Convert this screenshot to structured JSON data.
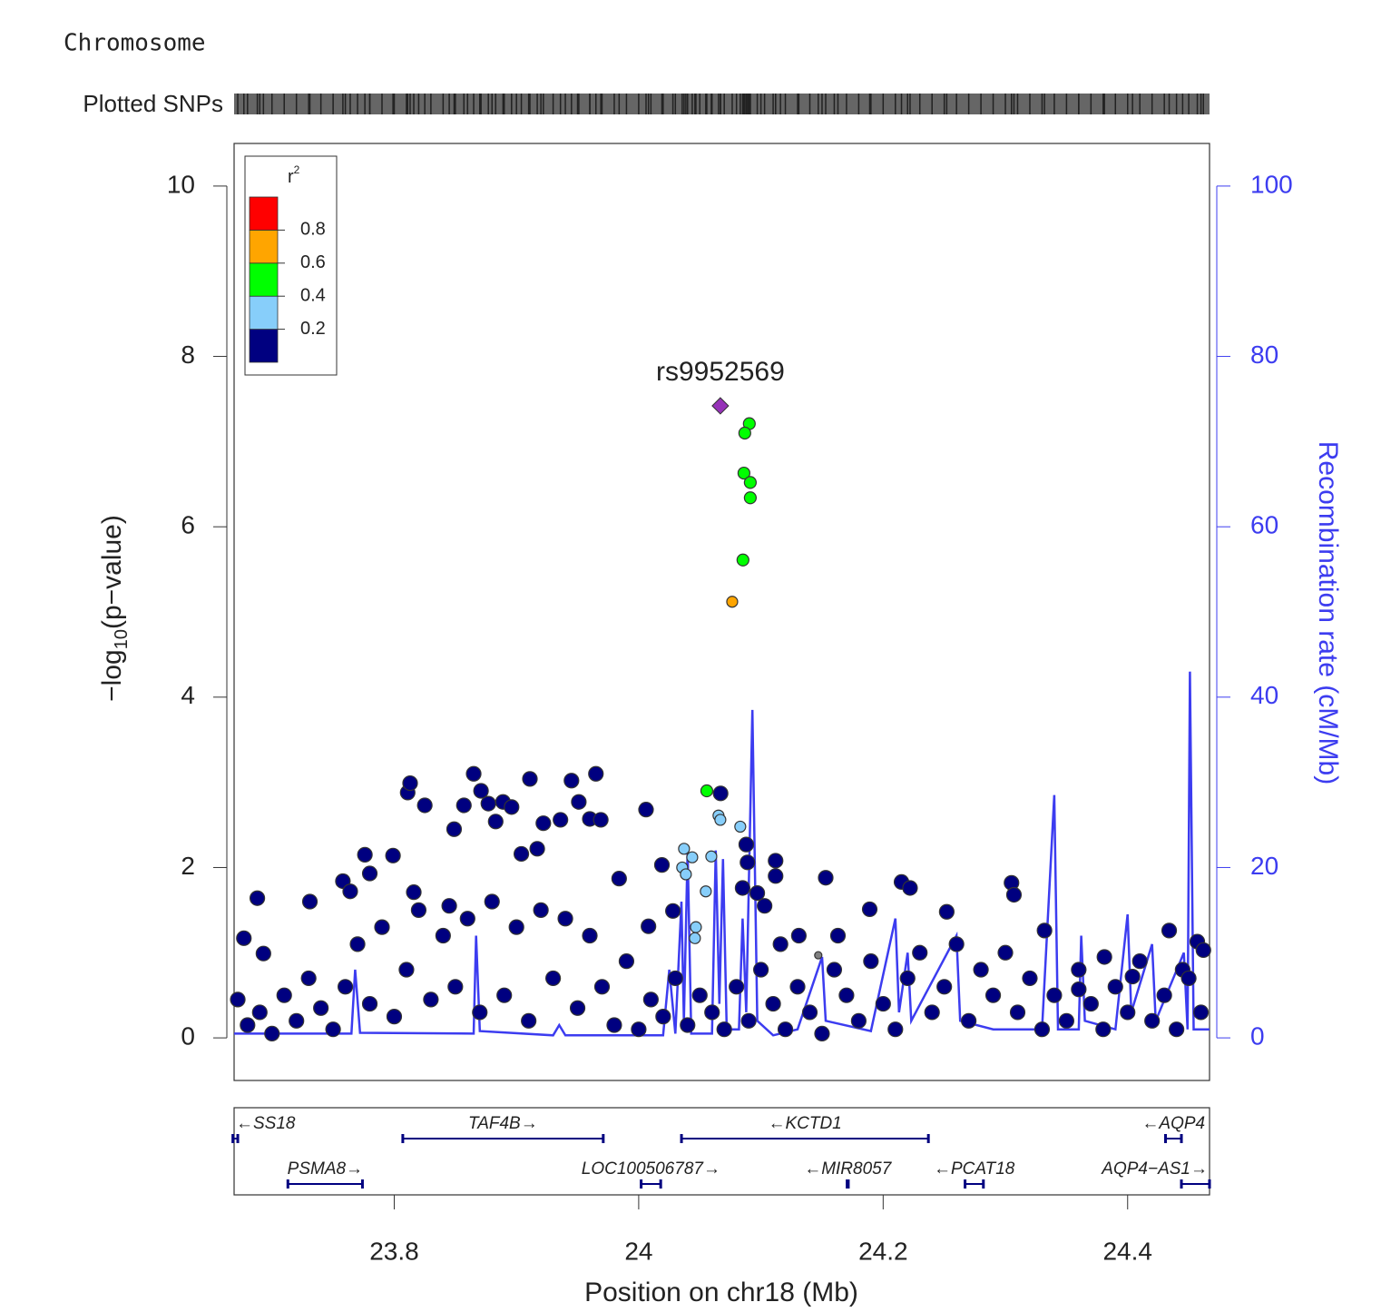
{
  "chart_data": {
    "type": "locuszoom",
    "chromosome_label": "Chromosome",
    "rug_label": "Plotted SNPs",
    "xlabel": "Position on chr18 (Mb)",
    "ylabel": [
      "−log",
      "10",
      "(p−value)"
    ],
    "y2label": "Recombination rate (cM/Mb)",
    "xlim": [
      23.669,
      24.467
    ],
    "xticks": [
      23.8,
      24,
      24.2,
      24.4
    ],
    "ylim": [
      -0.5,
      10.5
    ],
    "yticks": [
      0,
      2,
      4,
      6,
      8,
      10
    ],
    "y2lim": [
      -5,
      105
    ],
    "y2ticks": [
      0,
      20,
      40,
      60,
      80,
      100
    ],
    "legend": {
      "title": "r",
      "title_sup": "2",
      "colors": [
        "#000080",
        "#87CEFA",
        "#00FF00",
        "#FFA500",
        "#FF0000"
      ],
      "ticks": [
        0.2,
        0.4,
        0.6,
        0.8
      ]
    },
    "lead": {
      "label": "rs9952569",
      "x": 24.0668,
      "y": 7.42,
      "color": "#9632B8"
    },
    "recombination": {
      "color": "#3c3cf0",
      "x": [
        23.669,
        23.765,
        23.768,
        23.772,
        23.865,
        23.867,
        23.87,
        23.93,
        23.935,
        23.94,
        24.02,
        24.025,
        24.03,
        24.035,
        24.037,
        24.04,
        24.043,
        24.06,
        24.063,
        24.066,
        24.069,
        24.072,
        24.082,
        24.085,
        24.088,
        24.093,
        24.097,
        24.11,
        24.13,
        24.15,
        24.153,
        24.19,
        24.21,
        24.213,
        24.22,
        24.223,
        24.26,
        24.263,
        24.29,
        24.33,
        24.34,
        24.343,
        24.36,
        24.362,
        24.365,
        24.39,
        24.4,
        24.403,
        24.42,
        24.423,
        24.446,
        24.449,
        24.451,
        24.454,
        24.467
      ],
      "values": [
        0.5,
        0.5,
        8,
        0.6,
        0.5,
        12,
        0.8,
        0.3,
        1.5,
        0.3,
        0.3,
        8,
        0.5,
        16,
        2,
        22,
        0.5,
        0.5,
        22,
        4,
        21,
        1,
        1,
        14,
        3,
        38.5,
        2,
        0.3,
        1,
        9.5,
        2,
        0.8,
        14,
        3,
        10,
        2,
        12,
        2,
        1,
        1,
        28.5,
        1,
        1,
        12,
        2,
        1,
        14.5,
        3,
        11,
        2,
        10,
        1,
        43,
        1,
        1
      ]
    },
    "snp_groups": [
      {
        "color": "#000080",
        "radius": 8,
        "x": [
          23.677,
          23.688,
          23.693,
          23.731,
          23.758,
          23.764,
          23.776,
          23.78,
          23.799,
          23.811,
          23.813,
          23.825,
          23.816,
          23.845,
          23.849,
          23.857,
          23.865,
          23.871,
          23.877,
          23.883,
          23.889,
          23.896,
          23.904,
          23.911,
          23.917,
          23.922,
          23.936,
          23.945,
          23.951,
          23.96,
          23.965,
          23.969,
          23.984,
          24.006,
          24.008,
          24.019,
          24.028,
          24.067,
          24.088,
          24.089,
          24.085,
          24.112,
          24.112,
          24.097,
          24.103,
          24.116,
          24.131,
          24.153,
          24.163,
          24.189,
          24.215,
          24.222,
          24.252,
          24.305,
          24.307,
          24.332,
          24.381,
          24.434,
          24.457,
          24.462,
          24.445,
          24.404,
          24.36,
          23.672,
          23.68,
          23.69,
          23.7,
          23.71,
          23.72,
          23.73,
          23.74,
          23.75,
          23.76,
          23.77,
          23.78,
          23.79,
          23.8,
          23.81,
          23.82,
          23.83,
          23.84,
          23.85,
          23.86,
          23.87,
          23.88,
          23.89,
          23.9,
          23.91,
          23.92,
          23.93,
          23.94,
          23.95,
          23.96,
          23.97,
          23.98,
          23.99,
          24.0,
          24.01,
          24.02,
          24.03,
          24.04,
          24.05,
          24.06,
          24.07,
          24.08,
          24.09,
          24.1,
          24.11,
          24.12,
          24.13,
          24.14,
          24.15,
          24.16,
          24.17,
          24.18,
          24.19,
          24.2,
          24.21,
          24.22,
          24.23,
          24.24,
          24.25,
          24.26,
          24.27,
          24.28,
          24.29,
          24.3,
          24.31,
          24.32,
          24.33,
          24.34,
          24.35,
          24.36,
          24.37,
          24.38,
          24.39,
          24.4,
          24.41,
          24.42,
          24.43,
          24.44,
          24.45,
          24.46
        ],
        "y": [
          1.17,
          1.64,
          0.99,
          1.6,
          1.84,
          1.72,
          2.15,
          1.93,
          2.14,
          2.88,
          2.99,
          2.73,
          1.71,
          1.55,
          2.45,
          2.73,
          3.1,
          2.9,
          2.75,
          2.54,
          2.77,
          2.71,
          2.16,
          3.04,
          2.22,
          2.52,
          2.56,
          3.02,
          2.77,
          2.57,
          3.1,
          2.56,
          1.87,
          2.68,
          1.31,
          2.03,
          1.49,
          2.87,
          2.27,
          2.06,
          1.76,
          2.08,
          1.9,
          1.7,
          1.55,
          1.1,
          1.2,
          1.88,
          1.2,
          1.51,
          1.83,
          1.76,
          1.48,
          1.82,
          1.68,
          1.26,
          0.95,
          1.26,
          1.13,
          1.03,
          0.8,
          0.72,
          0.57,
          0.45,
          0.15,
          0.3,
          0.05,
          0.5,
          0.2,
          0.7,
          0.35,
          0.1,
          0.6,
          1.1,
          0.4,
          1.3,
          0.25,
          0.8,
          1.5,
          0.45,
          1.2,
          0.6,
          1.4,
          0.3,
          1.6,
          0.5,
          1.3,
          0.2,
          1.5,
          0.7,
          1.4,
          0.35,
          1.2,
          0.6,
          0.15,
          0.9,
          0.1,
          0.45,
          0.25,
          0.7,
          0.15,
          0.5,
          0.3,
          0.1,
          0.6,
          0.2,
          0.8,
          0.4,
          0.1,
          0.6,
          0.3,
          0.05,
          0.8,
          0.5,
          0.2,
          0.9,
          0.4,
          0.1,
          0.7,
          1.0,
          0.3,
          0.6,
          1.1,
          0.2,
          0.8,
          0.5,
          1.0,
          0.3,
          0.7,
          0.1,
          0.5,
          0.2,
          0.8,
          0.4,
          0.1,
          0.6,
          0.3,
          0.9,
          0.2,
          0.5,
          0.1,
          0.7,
          0.3
        ]
      },
      {
        "color": "#808080",
        "radius": 4,
        "x": [
          24.1469
        ],
        "y": [
          0.97
        ]
      },
      {
        "color": "#87CEFA",
        "radius": 6,
        "x": [
          24.0653,
          24.0831,
          24.0594,
          24.0371,
          24.0356,
          24.0386,
          24.0438,
          24.0549,
          24.0468,
          24.046,
          24.0668
        ],
        "y": [
          2.61,
          2.48,
          2.13,
          2.22,
          2.0,
          1.92,
          2.12,
          1.72,
          1.3,
          1.17,
          2.56
        ]
      },
      {
        "color": "#00FF00",
        "radius": 6.5,
        "x": [
          24.0905,
          24.0868,
          24.0861,
          24.0913,
          24.0913,
          24.0853,
          24.0557
        ],
        "y": [
          7.21,
          7.1,
          6.63,
          6.52,
          6.34,
          5.61,
          2.9
        ]
      },
      {
        "color": "#FFA500",
        "radius": 6,
        "x": [
          24.0765
        ],
        "y": [
          5.12
        ]
      }
    ],
    "genes": [
      {
        "label": "←SS18",
        "start": 23.668,
        "end": 23.672,
        "row": 0
      },
      {
        "label": "TAF4B→",
        "start": 23.807,
        "end": 23.971,
        "row": 0
      },
      {
        "label": "←KCTD1",
        "start": 24.035,
        "end": 24.237,
        "row": 0
      },
      {
        "label": "←AQP4",
        "start": 24.431,
        "end": 24.444,
        "row": 0
      },
      {
        "label": "PSMA8→",
        "start": 23.713,
        "end": 23.774,
        "row": 1
      },
      {
        "label": "LOC100506787→",
        "start": 24.002,
        "end": 24.018,
        "row": 1
      },
      {
        "label": "←MIR8057",
        "start": 24.1705,
        "end": 24.1715,
        "row": 1
      },
      {
        "label": "←PCAT18",
        "start": 24.267,
        "end": 24.282,
        "row": 1
      },
      {
        "label": "AQP4−AS1→",
        "start": 24.444,
        "end": 24.467,
        "row": 1
      }
    ]
  }
}
